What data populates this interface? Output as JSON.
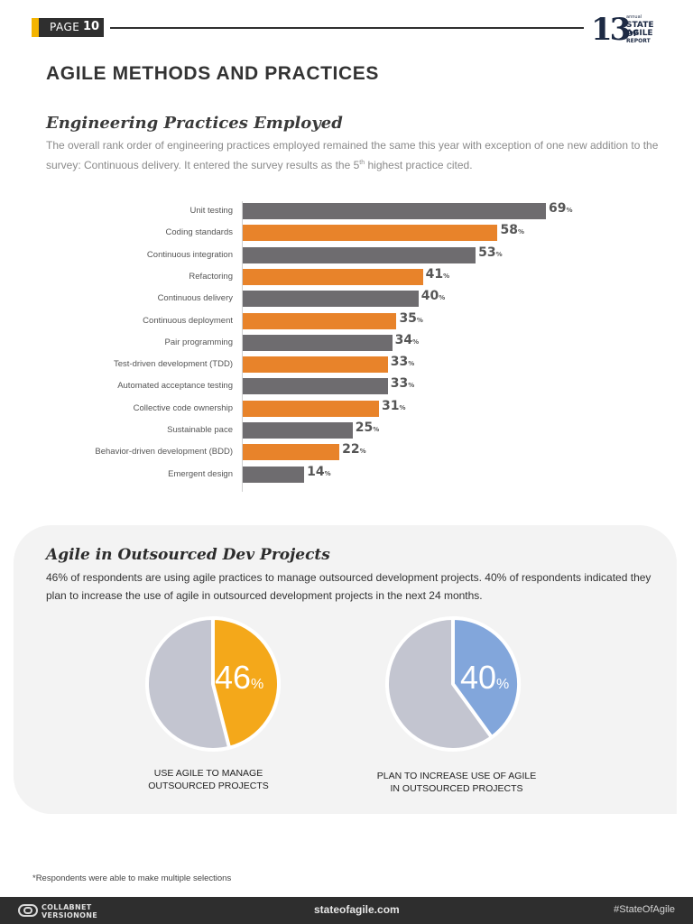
{
  "header": {
    "page_label": "PAGE",
    "page_number": "10",
    "logo": {
      "number": "13",
      "annual": "annual",
      "line1": "STATE OF",
      "line2": "AGILE",
      "line3": "REPORT"
    }
  },
  "section_title": "AGILE METHODS AND PRACTICES",
  "engineering": {
    "title": "Engineering Practices Employed",
    "intro_before": "The overall rank order of engineering practices employed remained the same this year with exception of one new addition to the survey: Continuous delivery.  It entered the survey results as the 5",
    "intro_sup": "th",
    "intro_after": " highest practice cited."
  },
  "chart_data": {
    "type": "bar",
    "orientation": "horizontal",
    "categories": [
      "Unit testing",
      "Coding standards",
      "Continuous integration",
      "Refactoring",
      "Continuous delivery",
      "Continuous deployment",
      "Pair programming",
      "Test-driven development (TDD)",
      "Automated acceptance testing",
      "Collective code ownership",
      "Sustainable pace",
      "Behavior-driven development (BDD)",
      "Emergent design"
    ],
    "values": [
      69,
      58,
      53,
      41,
      40,
      35,
      34,
      33,
      33,
      31,
      25,
      22,
      14
    ],
    "value_suffix": "%",
    "colors": [
      "#6e6c6f",
      "#e8832a"
    ],
    "color_pattern": "alternating grey / orange",
    "xlim": [
      0,
      100
    ],
    "grid": false,
    "legend": false,
    "title": "",
    "xlabel": "",
    "ylabel": ""
  },
  "outsourced": {
    "title": "Agile in Outsourced Dev Projects",
    "text": "46% of respondents are using agile practices to manage outsourced development projects. 40% of respondents indicated they plan to increase the use of agile in outsourced development projects in the next 24 months.",
    "pies": [
      {
        "value": 46,
        "value_text": "46",
        "pct": "%",
        "color": "#f4a81a",
        "rest_color": "#c3c5d0",
        "caption_line1": "USE AGILE TO MANAGE",
        "caption_line2": "OUTSOURCED PROJECTS"
      },
      {
        "value": 40,
        "value_text": "40",
        "pct": "%",
        "color": "#82a6db",
        "rest_color": "#c3c5d0",
        "caption_line1": "PLAN TO INCREASE USE OF AGILE",
        "caption_line2": "IN OUTSOURCED PROJECTS"
      }
    ]
  },
  "footnote": "*Respondents were able to make multiple selections",
  "footer": {
    "brand_line1": "COLLABNET",
    "brand_line2": "VERSIONONE",
    "url": "stateofagile.com",
    "hashtag": "#StateOfAgile"
  }
}
